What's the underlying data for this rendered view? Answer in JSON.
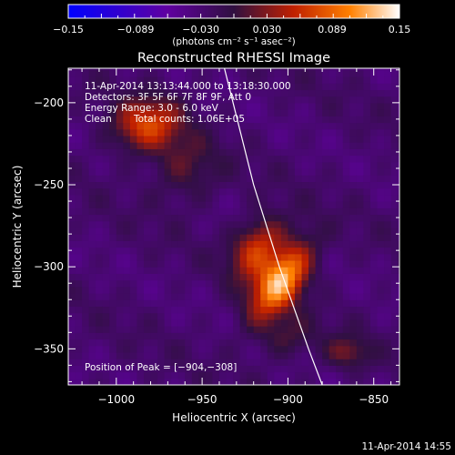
{
  "chart_data": {
    "type": "heatmap",
    "title": "Reconstructed RHESSI Image",
    "xlabel": "Heliocentric X (arcsec)",
    "ylabel": "Heliocentric Y (arcsec)",
    "xlim": [
      -1028,
      -835
    ],
    "ylim": [
      -372,
      -179
    ],
    "xticks": [
      -1000,
      -950,
      -900,
      -850
    ],
    "xtick_labels": [
      "−1000",
      "−950",
      "−900",
      "−850"
    ],
    "yticks": [
      -350,
      -300,
      -250,
      -200
    ],
    "ytick_labels": [
      "−350",
      "−300",
      "−250",
      "−200"
    ],
    "colorbar": {
      "range": [
        -0.15,
        0.15
      ],
      "ticks": [
        -0.15,
        -0.089,
        -0.03,
        0.03,
        0.089,
        0.15
      ],
      "tick_labels": [
        "−0.15",
        "−0.089",
        "−0.030",
        "0.030",
        "0.089",
        "0.15"
      ],
      "units_label": "(photons cm⁻² s⁻¹ asec⁻²)",
      "colors": [
        "#0000ff",
        "#6000a0",
        "#301040",
        "#c02000",
        "#ff8000",
        "#ffffff"
      ]
    },
    "sources": [
      {
        "x": -904,
        "y": -308,
        "peak": 0.15,
        "sx": 9,
        "sy": 18,
        "angle": 32
      },
      {
        "x": -918,
        "y": -288,
        "peak": 0.09,
        "sx": 9,
        "sy": 14,
        "angle": 30
      },
      {
        "x": -982,
        "y": -213,
        "peak": 0.095,
        "sx": 14,
        "sy": 11,
        "angle": -15
      },
      {
        "x": -960,
        "y": -240,
        "peak": 0.04,
        "sx": 14,
        "sy": 14,
        "angle": 0
      },
      {
        "x": -865,
        "y": -352,
        "peak": 0.05,
        "sx": 9,
        "sy": 7,
        "angle": 0
      },
      {
        "x": -900,
        "y": -343,
        "peak": 0.035,
        "sx": 12,
        "sy": 9,
        "angle": 0
      }
    ],
    "limb": {
      "points": [
        [
          -937,
          -179
        ],
        [
          -920,
          -250
        ],
        [
          -905,
          -300
        ],
        [
          -888,
          -350
        ],
        [
          -880,
          -372
        ]
      ]
    },
    "annotations": {
      "time_range": "11-Apr-2014 13:13:44.000 to 13:18:30.000",
      "detectors": "Detectors: 3F 5F 6F 7F 8F 9F, Att 0",
      "energy_range": "Energy Range: 3.0 - 6.0 keV",
      "clean_label": "Clean",
      "total_counts": "Total counts: 1.06E+05",
      "peak_position": "Position of Peak = [−904,−308]"
    },
    "timestamp": "11-Apr-2014 14:55",
    "grid": false
  }
}
